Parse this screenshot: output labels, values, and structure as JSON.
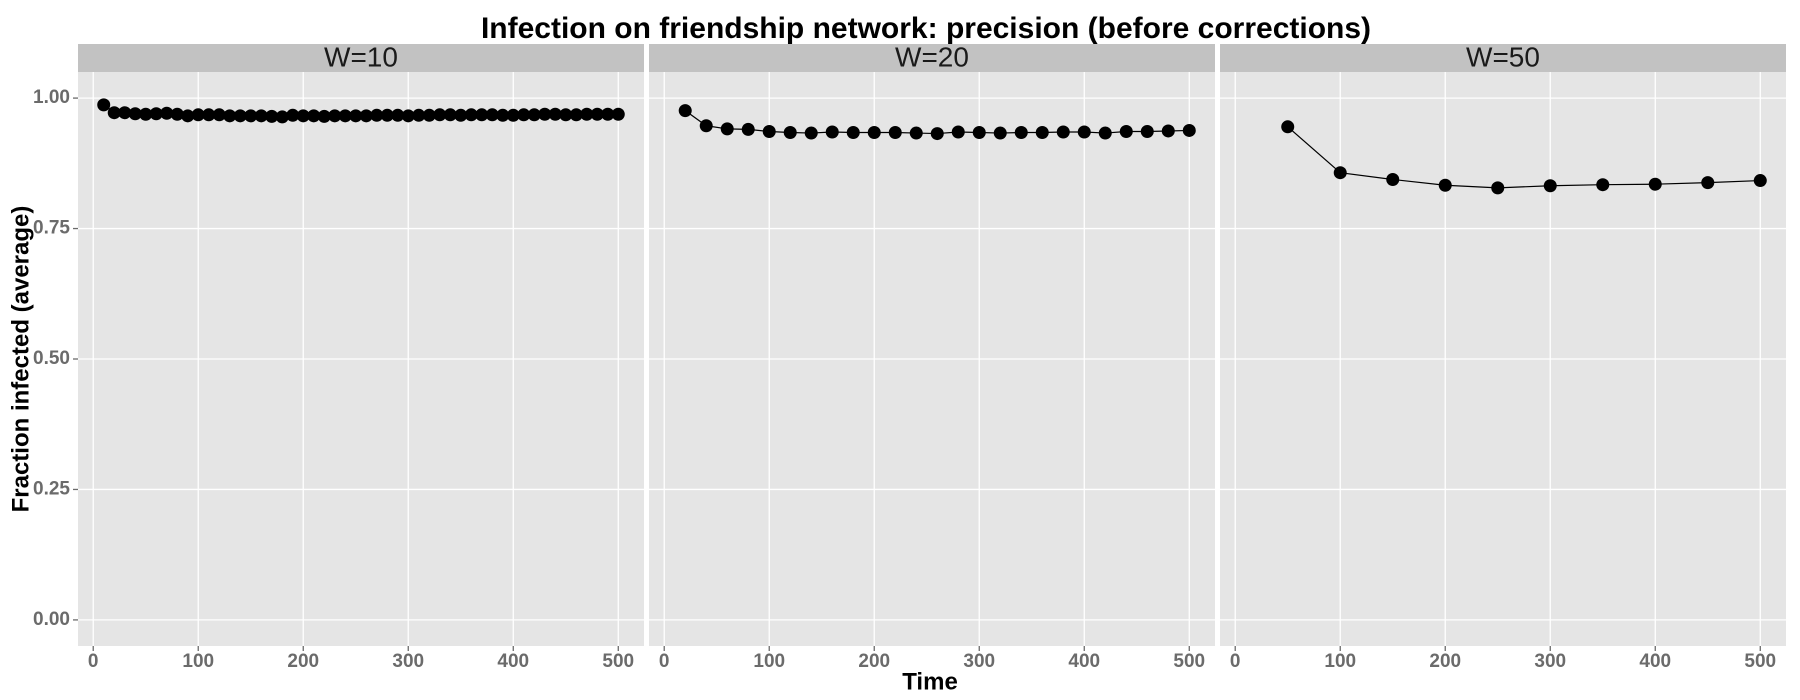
{
  "title": "Infection on friendship network: precision (before corrections)",
  "x_label": "Time",
  "y_label": "Fraction infected (average)",
  "chart_data": [
    {
      "type": "line",
      "title": "W=10",
      "color": "#000000",
      "grid": true,
      "x": [
        10,
        20,
        30,
        40,
        50,
        60,
        70,
        80,
        90,
        100,
        110,
        120,
        130,
        140,
        150,
        160,
        170,
        180,
        190,
        200,
        210,
        220,
        230,
        240,
        250,
        260,
        270,
        280,
        290,
        300,
        310,
        320,
        330,
        340,
        350,
        360,
        370,
        380,
        390,
        400,
        410,
        420,
        430,
        440,
        450,
        460,
        470,
        480,
        490,
        500
      ],
      "values": [
        0.987,
        0.972,
        0.972,
        0.97,
        0.969,
        0.97,
        0.971,
        0.969,
        0.966,
        0.968,
        0.968,
        0.968,
        0.966,
        0.966,
        0.966,
        0.966,
        0.965,
        0.964,
        0.967,
        0.966,
        0.966,
        0.965,
        0.966,
        0.966,
        0.966,
        0.966,
        0.967,
        0.967,
        0.967,
        0.966,
        0.967,
        0.967,
        0.968,
        0.968,
        0.967,
        0.968,
        0.968,
        0.968,
        0.967,
        0.967,
        0.968,
        0.968,
        0.969,
        0.969,
        0.968,
        0.968,
        0.969,
        0.969,
        0.969,
        0.969
      ],
      "xlim": [
        -14.5,
        524.5
      ],
      "xticks": [
        0,
        100,
        200,
        300,
        400,
        500
      ],
      "ylim": [
        -0.05,
        1.05
      ],
      "yticks": [
        {
          "value": 0,
          "label": "0.00"
        },
        0.25,
        {
          "value": 0.5,
          "label": "0.50"
        },
        0.75,
        {
          "value": 1,
          "label": "1.00"
        }
      ]
    },
    {
      "type": "line",
      "title": "W=20",
      "color": "#000000",
      "grid": true,
      "x": [
        20,
        40,
        60,
        80,
        100,
        120,
        140,
        160,
        180,
        200,
        220,
        240,
        260,
        280,
        300,
        320,
        340,
        360,
        380,
        400,
        420,
        440,
        460,
        480,
        500
      ],
      "values": [
        0.976,
        0.947,
        0.941,
        0.94,
        0.936,
        0.934,
        0.933,
        0.935,
        0.934,
        0.934,
        0.934,
        0.933,
        0.932,
        0.935,
        0.934,
        0.933,
        0.934,
        0.934,
        0.935,
        0.935,
        0.933,
        0.936,
        0.936,
        0.937,
        0.938
      ],
      "xlim": [
        -14.5,
        524.5
      ],
      "xticks": [
        0,
        100,
        200,
        300,
        400,
        500
      ],
      "ylim": [
        -0.05,
        1.05
      ],
      "yticks": [
        {
          "value": 0,
          "label": "0.00"
        },
        0.25,
        {
          "value": 0.5,
          "label": "0.50"
        },
        0.75,
        {
          "value": 1,
          "label": "1.00"
        }
      ]
    },
    {
      "type": "line",
      "title": "W=50",
      "color": "#000000",
      "grid": true,
      "x": [
        50,
        100,
        150,
        200,
        250,
        300,
        350,
        400,
        450,
        500
      ],
      "values": [
        0.945,
        0.857,
        0.844,
        0.833,
        0.828,
        0.832,
        0.834,
        0.835,
        0.838,
        0.842
      ],
      "xlim": [
        -14.5,
        524.5
      ],
      "xticks": [
        0,
        100,
        200,
        300,
        400,
        500
      ],
      "ylim": [
        -0.05,
        1.05
      ],
      "yticks": [
        {
          "value": 0,
          "label": "0.00"
        },
        0.25,
        {
          "value": 0.5,
          "label": "0.50"
        },
        0.75,
        {
          "value": 1,
          "label": "1.00"
        }
      ]
    }
  ]
}
